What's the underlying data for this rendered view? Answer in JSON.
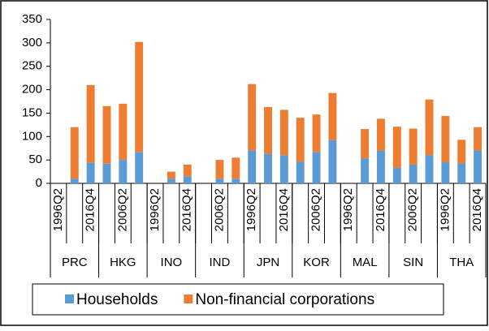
{
  "chart_data": {
    "type": "stacked_bar",
    "categories": [
      "1996Q2",
      null,
      "2016Q4",
      null,
      "2006Q2",
      null,
      "1996Q2",
      null,
      "2016Q4",
      null,
      "2006Q2",
      null,
      "1996Q2",
      null,
      "2016Q4",
      null,
      "2006Q2",
      null,
      "1996Q2",
      null,
      "2016Q4",
      null,
      "2006Q2",
      null,
      "1996Q2",
      null,
      "2016Q4"
    ],
    "groups": [
      "PRC",
      "HKG",
      "INO",
      "IND",
      "JPN",
      "KOR",
      "MAL",
      "SIN",
      "THA"
    ],
    "series": [
      {
        "name": "Households",
        "color": "#5b9bd5",
        "values": [
          null,
          10,
          44,
          42,
          50,
          67,
          null,
          10,
          15,
          null,
          10,
          10,
          70,
          63,
          60,
          46,
          67,
          92,
          null,
          53,
          70,
          33,
          40,
          60,
          45,
          43,
          70
        ]
      },
      {
        "name": "Non-financial corporations",
        "color": "#ed7d31",
        "values": [
          null,
          110,
          166,
          123,
          120,
          235,
          null,
          15,
          25,
          null,
          40,
          45,
          142,
          100,
          97,
          94,
          80,
          101,
          null,
          63,
          68,
          88,
          77,
          119,
          99,
          50,
          50
        ]
      }
    ],
    "ylim": [
      0,
      350
    ],
    "yticks": [
      0,
      50,
      100,
      150,
      200,
      250,
      300,
      350
    ],
    "legend": "bottom"
  }
}
